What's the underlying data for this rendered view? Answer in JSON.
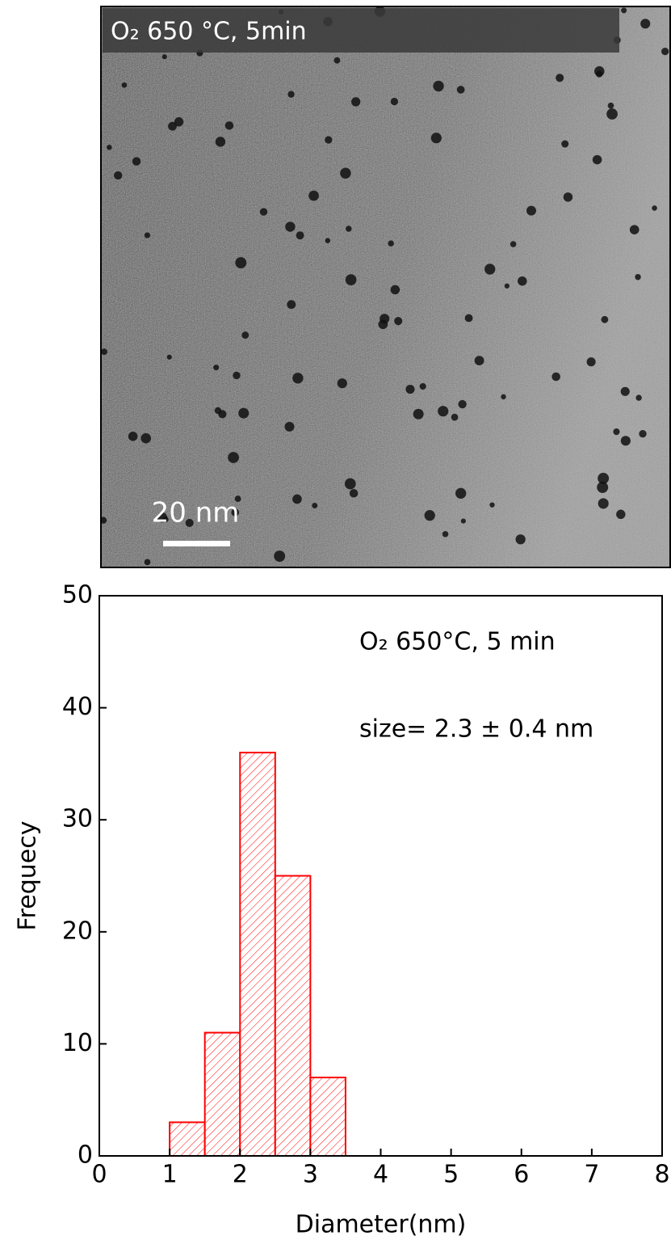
{
  "image": {
    "label": "O₂ 650 °C, 5min",
    "scale_bar": "20 nm"
  },
  "chart_data": {
    "type": "histogram",
    "annotations": [
      "O₂ 650°C, 5 min",
      "size= 2.3 ± 0.4 nm"
    ],
    "x_label": "Diameter(nm)",
    "y_label": "Frequecy",
    "bins": [
      1,
      1.5,
      2,
      2.5,
      3,
      3.5
    ],
    "values": [
      3,
      11,
      36,
      25,
      7
    ],
    "color": "#ff0000",
    "xlim": [
      0,
      8
    ],
    "xticks": [
      0,
      1,
      2,
      3,
      4,
      5,
      6,
      7,
      8
    ],
    "ylim": [
      0,
      50
    ],
    "yticks": [
      0,
      10,
      20,
      30,
      40,
      50
    ]
  }
}
